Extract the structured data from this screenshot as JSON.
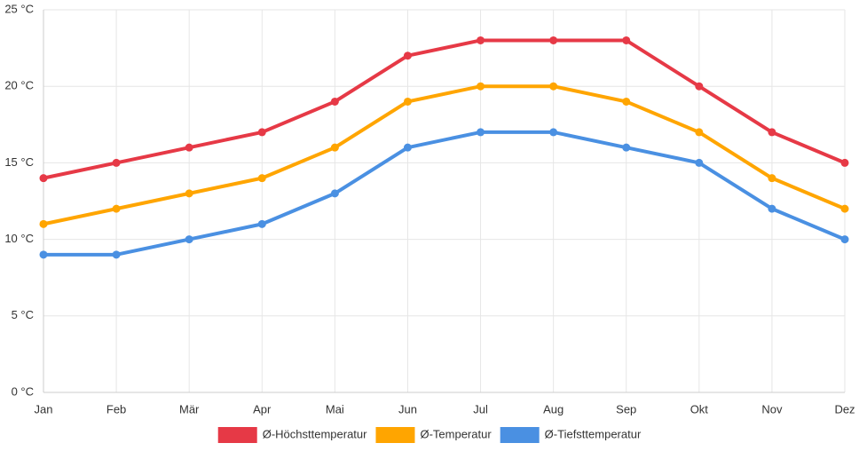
{
  "chart_data": {
    "type": "line",
    "title": "",
    "xlabel": "",
    "ylabel": "",
    "categories": [
      "Jan",
      "Feb",
      "Mär",
      "Apr",
      "Mai",
      "Jun",
      "Jul",
      "Aug",
      "Sep",
      "Okt",
      "Nov",
      "Dez"
    ],
    "y_ticks": [
      0,
      5,
      10,
      15,
      20,
      25
    ],
    "y_tick_labels": [
      "0 °C",
      "5 °C",
      "10 °C",
      "15 °C",
      "20 °C",
      "25 °C"
    ],
    "ylim": [
      0,
      25
    ],
    "grid": true,
    "legend_position": "bottom",
    "series": [
      {
        "name": "Ø-Höchsttemperatur",
        "color": "#e63946",
        "values": [
          14,
          15,
          16,
          17,
          19,
          22,
          23,
          23,
          23,
          20,
          17,
          15
        ]
      },
      {
        "name": "Ø-Temperatur",
        "color": "#ffa500",
        "values": [
          11,
          12,
          13,
          14,
          16,
          19,
          20,
          20,
          19,
          17,
          14,
          12
        ]
      },
      {
        "name": "Ø-Tiefsttemperatur",
        "color": "#4a90e2",
        "values": [
          9,
          9,
          10,
          11,
          13,
          16,
          17,
          17,
          16,
          15,
          12,
          10
        ]
      }
    ]
  }
}
